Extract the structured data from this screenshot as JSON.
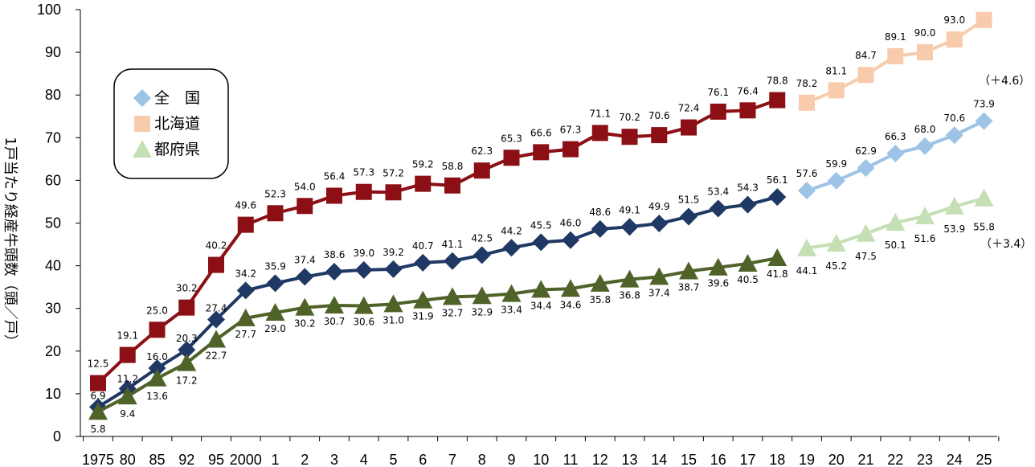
{
  "chart_data": {
    "type": "line",
    "ylabel": "1戸当たり経産牛頭数（頭／戸）",
    "ylim": [
      0,
      100
    ],
    "yticks": [
      0,
      10,
      20,
      30,
      40,
      50,
      60,
      70,
      80,
      90,
      100
    ],
    "categories": [
      "1975",
      "80",
      "85",
      "92",
      "95",
      "2000",
      "1",
      "2",
      "3",
      "4",
      "5",
      "6",
      "7",
      "8",
      "9",
      "10",
      "11",
      "12",
      "13",
      "14",
      "15",
      "16",
      "17",
      "18",
      "19",
      "20",
      "21",
      "22",
      "23",
      "24",
      "25"
    ],
    "category_labels": [
      "1975",
      "80",
      "85",
      "92",
      "95",
      "2000",
      "1",
      "2",
      "3",
      "4",
      "5",
      "6",
      "7",
      "8",
      "9",
      "10",
      "11",
      "12",
      "13",
      "14",
      "15",
      "16",
      "17",
      "18",
      "19",
      "20",
      "21",
      "22",
      "23",
      "24",
      "25"
    ],
    "series": [
      {
        "name": "全　国",
        "marker": "diamond",
        "color_actual": "#1f3864",
        "color_projection": "#9dc3e6",
        "values": [
          6.9,
          11.2,
          16.0,
          20.3,
          27.4,
          34.2,
          35.9,
          37.4,
          38.6,
          39.0,
          39.2,
          40.7,
          41.1,
          42.5,
          44.2,
          45.5,
          46.0,
          48.6,
          49.1,
          49.9,
          51.5,
          53.4,
          54.3,
          56.1,
          57.6,
          59.9,
          62.9,
          66.3,
          68.0,
          70.6,
          73.9
        ],
        "labels": [
          "6.9",
          "11.2",
          "16.0",
          "20.3",
          "27.4",
          "34.2",
          "35.9",
          "37.4",
          "38.6",
          "39.0",
          "39.2",
          "40.7",
          "41.1",
          "42.5",
          "44.2",
          "45.5",
          "46.0",
          "48.6",
          "49.1",
          "49.9",
          "51.5",
          "53.4",
          "54.3",
          "56.1",
          "57.6",
          "59.9",
          "62.9",
          "66.3",
          "68.0",
          "70.6",
          "73.9"
        ]
      },
      {
        "name": "北海道",
        "marker": "square",
        "color_actual": "#8b0f14",
        "color_projection": "#f8cbad",
        "values": [
          12.5,
          19.1,
          25.0,
          30.2,
          40.2,
          49.6,
          52.3,
          54.0,
          56.4,
          57.3,
          57.2,
          59.2,
          58.8,
          62.3,
          65.3,
          66.6,
          67.3,
          71.1,
          70.2,
          70.6,
          72.4,
          76.1,
          76.4,
          78.8,
          78.2,
          81.1,
          84.7,
          89.1,
          90.0,
          93.0,
          97.6
        ],
        "labels": [
          "12.5",
          "19.1",
          "25.0",
          "30.2",
          "40.2",
          "49.6",
          "52.3",
          "54.0",
          "56.4",
          "57.3",
          "57.2",
          "59.2",
          "58.8",
          "62.3",
          "65.3",
          "66.6",
          "67.3",
          "71.1",
          "70.2",
          "70.6",
          "72.4",
          "76.1",
          "76.4",
          "78.8",
          "78.2",
          "81.1",
          "84.7",
          "89.1",
          "90.0",
          "93.0",
          ""
        ]
      },
      {
        "name": "都府県",
        "marker": "triangle",
        "color_actual": "#4f6228",
        "color_projection": "#c5e0b4",
        "values": [
          5.8,
          9.4,
          13.6,
          17.2,
          22.7,
          27.7,
          29.0,
          30.2,
          30.7,
          30.6,
          31.0,
          31.9,
          32.7,
          32.9,
          33.4,
          34.4,
          34.6,
          35.8,
          36.8,
          37.4,
          38.7,
          39.6,
          40.5,
          41.8,
          44.1,
          45.2,
          47.5,
          50.1,
          51.6,
          53.9,
          55.8
        ],
        "labels": [
          "5.8",
          "9.4",
          "13.6",
          "17.2",
          "22.7",
          "27.7",
          "29.0",
          "30.2",
          "30.7",
          "30.6",
          "31.0",
          "31.9",
          "32.7",
          "32.9",
          "33.4",
          "34.4",
          "34.6",
          "35.8",
          "36.8",
          "37.4",
          "38.7",
          "39.6",
          "40.5",
          "41.8",
          "44.1",
          "45.2",
          "47.5",
          "50.1",
          "51.6",
          "53.9",
          "55.8"
        ]
      }
    ],
    "projection_start_index": 24,
    "annotations": [
      "（＋4.6）",
      "（＋3.4）"
    ],
    "legend_position": "top-left"
  }
}
